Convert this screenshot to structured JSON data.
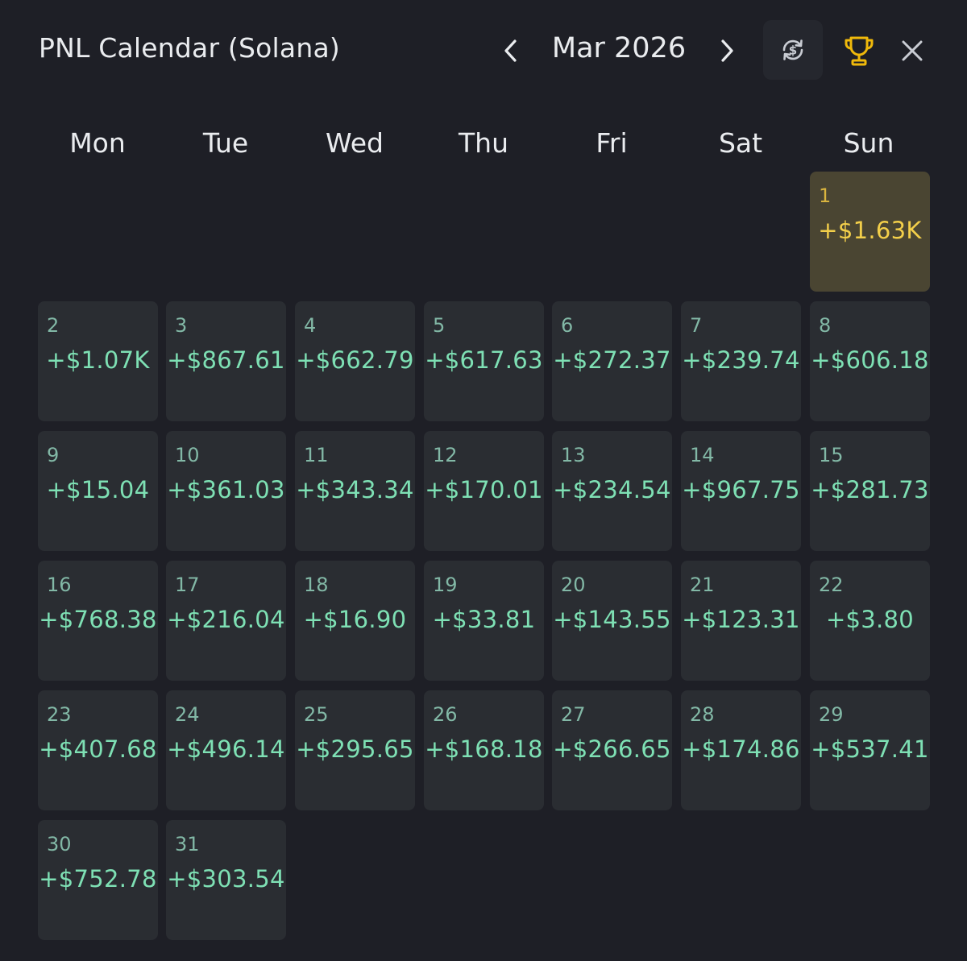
{
  "header": {
    "title": "PNL Calendar (Solana)",
    "month_label": "Mar 2026"
  },
  "icons": {
    "prev": "chevron-left-icon",
    "next": "chevron-right-icon",
    "currency": "currency-swap-icon",
    "trophy": "trophy-icon",
    "close": "close-icon"
  },
  "colors": {
    "background": "#1e1f26",
    "cell_background": "#2a2d32",
    "best_day_background": "#4a4532",
    "positive_pnl": "#7ee0b4",
    "best_day_pnl": "#f3cf4a",
    "trophy": "#f0b90b"
  },
  "weekdays": [
    "Mon",
    "Tue",
    "Wed",
    "Thu",
    "Fri",
    "Sat",
    "Sun"
  ],
  "calendar": {
    "first_weekday_index": 6,
    "days": [
      {
        "day": "1",
        "pnl": "+$1.63K",
        "best": true
      },
      {
        "day": "2",
        "pnl": "+$1.07K"
      },
      {
        "day": "3",
        "pnl": "+$867.61"
      },
      {
        "day": "4",
        "pnl": "+$662.79"
      },
      {
        "day": "5",
        "pnl": "+$617.63"
      },
      {
        "day": "6",
        "pnl": "+$272.37"
      },
      {
        "day": "7",
        "pnl": "+$239.74"
      },
      {
        "day": "8",
        "pnl": "+$606.18"
      },
      {
        "day": "9",
        "pnl": "+$15.04"
      },
      {
        "day": "10",
        "pnl": "+$361.03"
      },
      {
        "day": "11",
        "pnl": "+$343.34"
      },
      {
        "day": "12",
        "pnl": "+$170.01"
      },
      {
        "day": "13",
        "pnl": "+$234.54"
      },
      {
        "day": "14",
        "pnl": "+$967.75"
      },
      {
        "day": "15",
        "pnl": "+$281.73"
      },
      {
        "day": "16",
        "pnl": "+$768.38"
      },
      {
        "day": "17",
        "pnl": "+$216.04"
      },
      {
        "day": "18",
        "pnl": "+$16.90"
      },
      {
        "day": "19",
        "pnl": "+$33.81"
      },
      {
        "day": "20",
        "pnl": "+$143.55"
      },
      {
        "day": "21",
        "pnl": "+$123.31"
      },
      {
        "day": "22",
        "pnl": "+$3.80"
      },
      {
        "day": "23",
        "pnl": "+$407.68"
      },
      {
        "day": "24",
        "pnl": "+$496.14"
      },
      {
        "day": "25",
        "pnl": "+$295.65"
      },
      {
        "day": "26",
        "pnl": "+$168.18"
      },
      {
        "day": "27",
        "pnl": "+$266.65"
      },
      {
        "day": "28",
        "pnl": "+$174.86"
      },
      {
        "day": "29",
        "pnl": "+$537.41"
      },
      {
        "day": "30",
        "pnl": "+$752.78"
      },
      {
        "day": "31",
        "pnl": "+$303.54"
      }
    ]
  }
}
